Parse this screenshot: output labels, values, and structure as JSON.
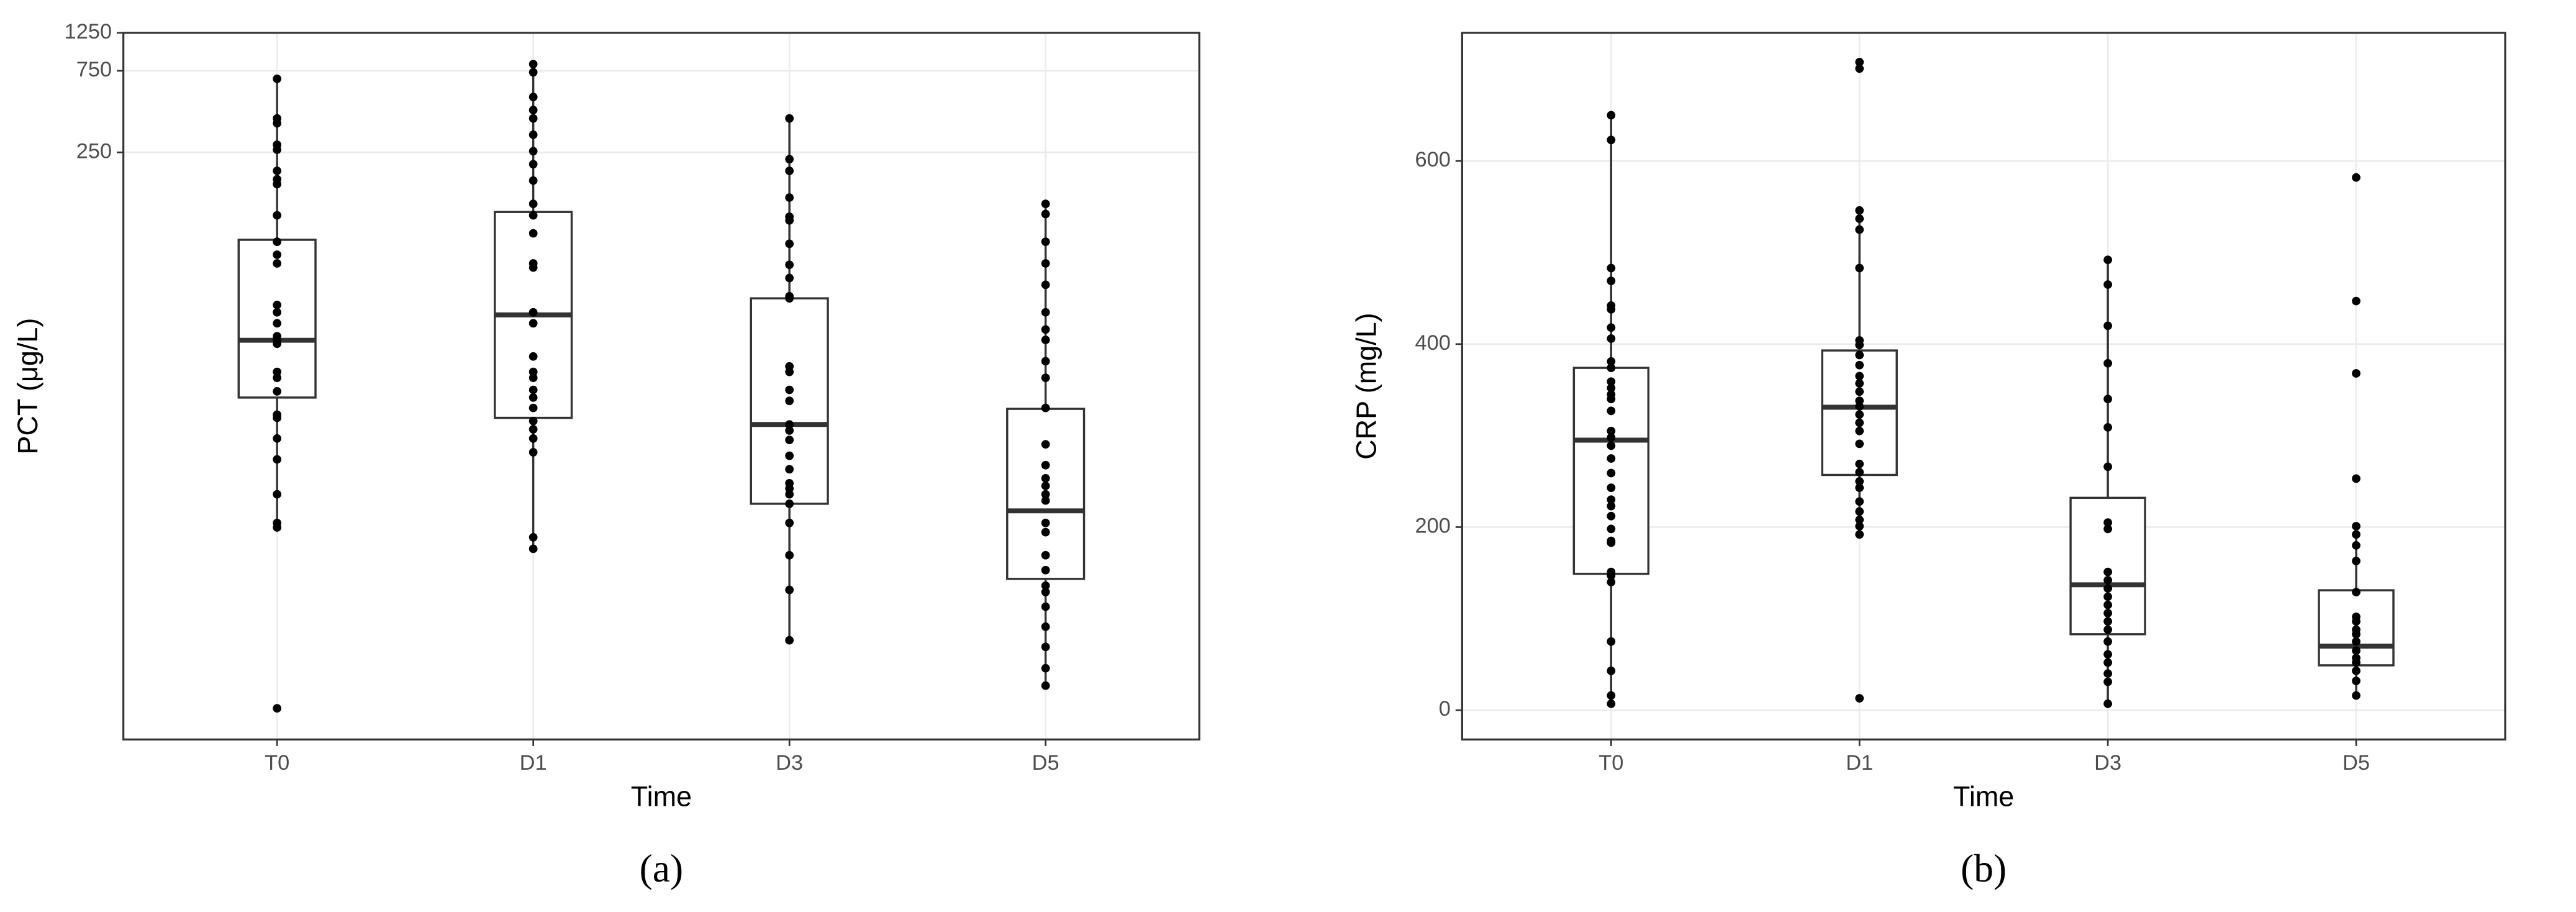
{
  "chart_data": [
    {
      "type": "box",
      "caption": "(a)",
      "x_label": "Time",
      "y_label": "PCT (μg/L)",
      "log_scale": true,
      "grid": true,
      "ylim": [
        0.092,
        1250
      ],
      "yticks": [
        250,
        750,
        1250
      ],
      "categories": [
        "T0",
        "D1",
        "D3",
        "D5"
      ],
      "boxes": [
        {
          "whisker_low": 1.6,
          "q1": 9.2,
          "median": 19.9,
          "q3": 77,
          "whisker_high": 673,
          "points": [
            673,
            395,
            370,
            277,
            259,
            195,
            174,
            163,
            107,
            75,
            63,
            56,
            32,
            29,
            25,
            21,
            20,
            19,
            13,
            12,
            10,
            7.3,
            7.0,
            5.3,
            4.0,
            2.5,
            1.7,
            1.6,
            0.14
          ]
        },
        {
          "whisker_low": 1.2,
          "q1": 7.0,
          "median": 28,
          "q3": 112,
          "whisker_high": 820,
          "points": [
            820,
            735,
            527,
            442,
            395,
            317,
            254,
            213,
            171,
            125,
            107,
            84,
            56,
            53,
            29,
            25,
            16,
            13,
            12,
            10.2,
            9.2,
            8.0,
            6.7,
            6.0,
            5.3,
            4.4,
            1.4,
            1.2
          ]
        },
        {
          "whisker_low": 0.35,
          "q1": 2.2,
          "median": 6.4,
          "q3": 35,
          "whisker_high": 395,
          "points": [
            395,
            228,
            195,
            136,
            105,
            100,
            73,
            55,
            46,
            36,
            35,
            14,
            13,
            10.2,
            8.8,
            6.4,
            5.9,
            5.2,
            4.2,
            3.5,
            2.9,
            2.7,
            2.5,
            2.2,
            1.7,
            1.1,
            0.69,
            0.35
          ]
        },
        {
          "whisker_low": 0.19,
          "q1": 0.8,
          "median": 2.0,
          "q3": 7.9,
          "whisker_high": 125,
          "points": [
            125,
            109,
            75,
            56,
            42,
            29,
            23,
            20,
            15,
            12,
            8.0,
            4.9,
            3.7,
            3.1,
            2.8,
            2.5,
            2.3,
            1.7,
            1.5,
            1.1,
            0.9,
            0.73,
            0.67,
            0.55,
            0.42,
            0.32,
            0.24,
            0.19
          ]
        }
      ]
    },
    {
      "type": "box",
      "caption": "(b)",
      "x_label": "Time",
      "y_label": "CRP (mg/L)",
      "log_scale": false,
      "grid": true,
      "ylim": [
        -32,
        740
      ],
      "yticks": [
        0,
        200,
        400,
        600
      ],
      "categories": [
        "T0",
        "D1",
        "D3",
        "D5"
      ],
      "boxes": [
        {
          "whisker_low": 7,
          "q1": 149,
          "median": 295,
          "q3": 374,
          "whisker_high": 650,
          "points": [
            650,
            623,
            483,
            469,
            442,
            438,
            418,
            406,
            381,
            374,
            359,
            352,
            345,
            340,
            327,
            305,
            298,
            289,
            275,
            259,
            243,
            230,
            223,
            212,
            198,
            185,
            183,
            151,
            147,
            140,
            75,
            43,
            16,
            7
          ]
        },
        {
          "whisker_low": 192,
          "q1": 257,
          "median": 331,
          "q3": 393,
          "whisker_high": 546,
          "points": [
            708,
            701,
            546,
            537,
            525,
            483,
            404,
            399,
            388,
            377,
            365,
            357,
            348,
            338,
            332,
            323,
            314,
            305,
            291,
            269,
            260,
            250,
            243,
            228,
            217,
            208,
            201,
            192,
            13
          ]
        },
        {
          "whisker_low": 7,
          "q1": 83,
          "median": 137,
          "q3": 232,
          "whisker_high": 492,
          "points": [
            492,
            465,
            420,
            379,
            340,
            309,
            266,
            205,
            198,
            151,
            142,
            133,
            124,
            115,
            106,
            97,
            88,
            75,
            61,
            52,
            40,
            31,
            7
          ]
        },
        {
          "whisker_low": 16,
          "q1": 49,
          "median": 70,
          "q3": 131,
          "whisker_high": 201,
          "points": [
            582,
            447,
            368,
            253,
            201,
            192,
            180,
            163,
            129,
            102,
            97,
            88,
            83,
            75,
            65,
            57,
            52,
            43,
            32,
            16
          ]
        }
      ]
    }
  ]
}
